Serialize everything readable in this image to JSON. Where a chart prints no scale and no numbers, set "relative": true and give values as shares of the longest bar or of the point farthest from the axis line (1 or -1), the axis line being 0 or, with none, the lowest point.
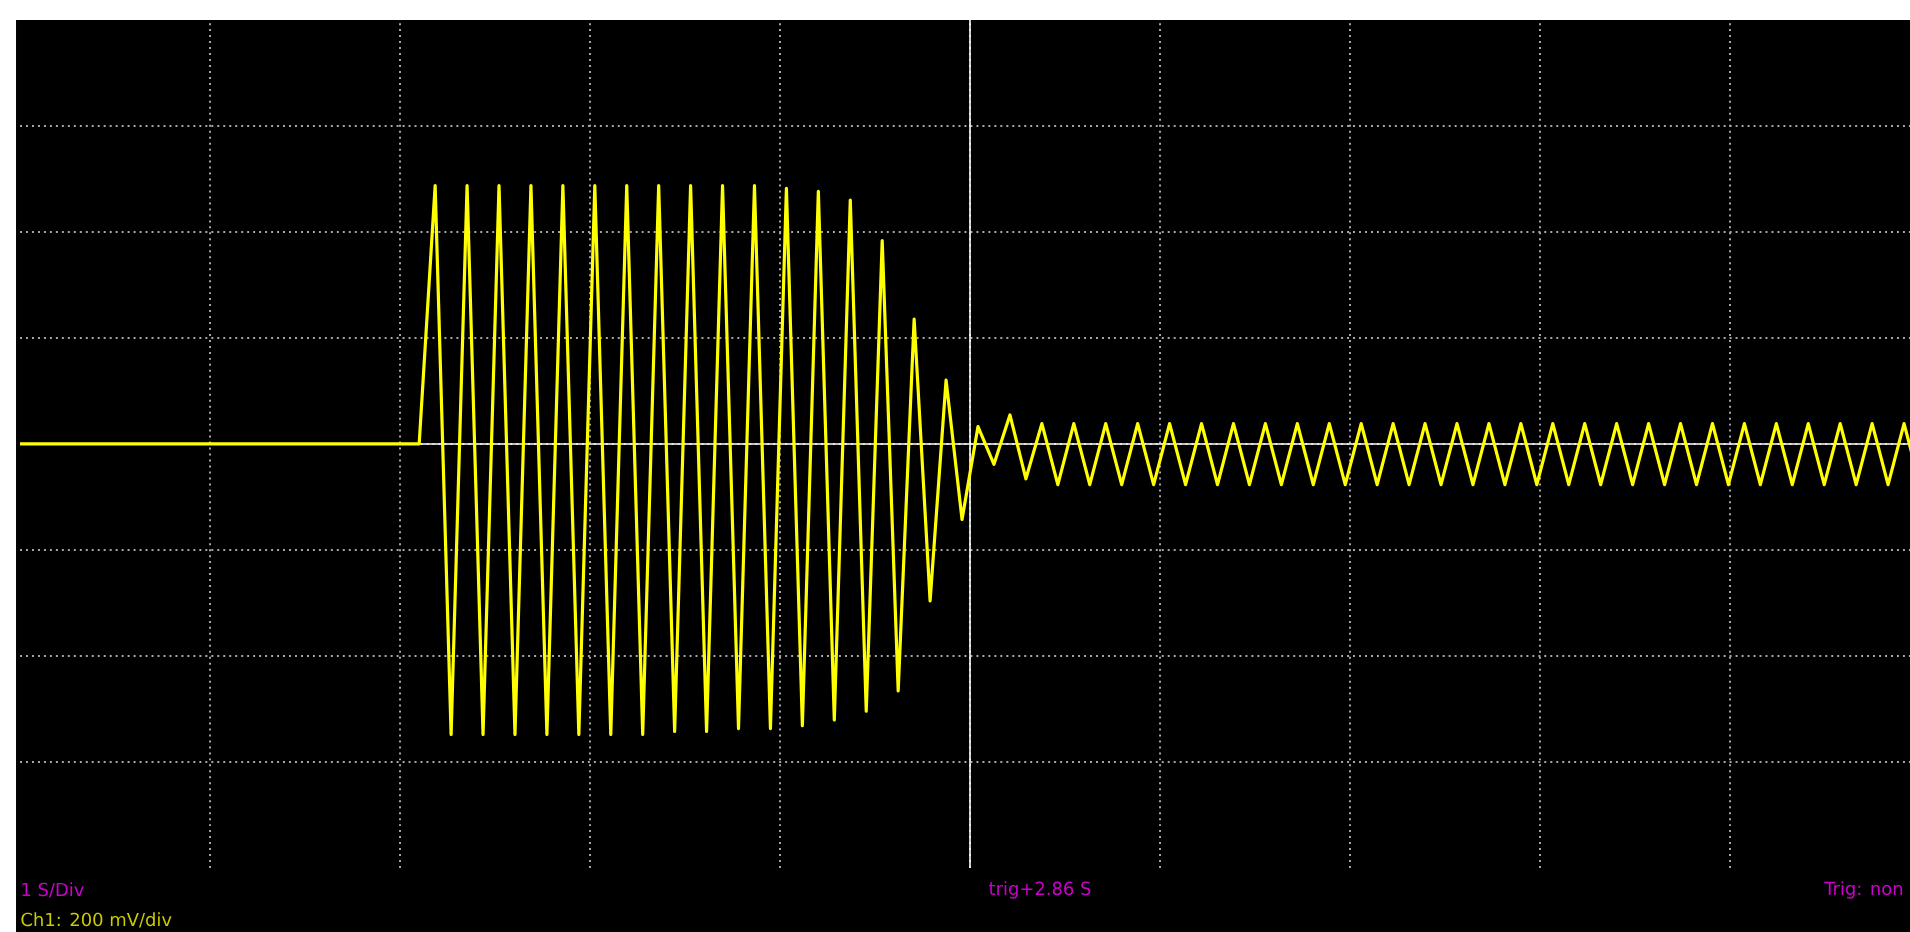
{
  "chart_data": {
    "type": "line",
    "relative": true,
    "grid": true,
    "categories": [
      null,
      null,
      null,
      null,
      null,
      null,
      null,
      null,
      null,
      null,
      null,
      null,
      null,
      null,
      null,
      null,
      null,
      null,
      null,
      null,
      null,
      null,
      null,
      null,
      null,
      null,
      null,
      null,
      null,
      null,
      null,
      null,
      null,
      null,
      null,
      null,
      null,
      null,
      null,
      null,
      null,
      null,
      null,
      null,
      null,
      null,
      null,
      null,
      null,
      null,
      null,
      null,
      null,
      null,
      null,
      null,
      null,
      null,
      null,
      null,
      null,
      null,
      null,
      null,
      null,
      null,
      null,
      null,
      null,
      null,
      null,
      null,
      null,
      null,
      null,
      null,
      null,
      null,
      null,
      null,
      null,
      null,
      null,
      null,
      null,
      null,
      null,
      null,
      null,
      null,
      null,
      null,
      null,
      null,
      null,
      null,
      null,
      null,
      null,
      null,
      null,
      null,
      null,
      null,
      null,
      null,
      null,
      null,
      null,
      null,
      null,
      null,
      null,
      null,
      null,
      null,
      null,
      null,
      null,
      null
    ],
    "series": [
      {
        "color": "#ffff00",
        "values": [
          0,
          0,
          0,
          0,
          0,
          0,
          0,
          0,
          0,
          0,
          0,
          0,
          0,
          0,
          0,
          0,
          0,
          0,
          0,
          0,
          0,
          0,
          0,
          0,
          0,
          0,
          0.89,
          -1,
          0.89,
          -1,
          0.89,
          -1,
          0.89,
          -1,
          0.89,
          -1,
          0.89,
          -1,
          0.89,
          -1,
          0.89,
          -0.99,
          0.89,
          -0.99,
          0.89,
          -0.98,
          0.89,
          -0.98,
          0.88,
          -0.97,
          0.87,
          -0.95,
          0.84,
          -0.92,
          0.7,
          -0.85,
          0.43,
          -0.54,
          0.22,
          -0.26,
          0.06,
          -0.07,
          0.1,
          -0.12,
          0.07,
          -0.14,
          0.07,
          -0.14,
          0.07,
          -0.14,
          0.07,
          -0.14,
          0.07,
          -0.14,
          0.07,
          -0.14,
          0.07,
          -0.14,
          0.07,
          -0.14,
          0.07,
          -0.14,
          0.07,
          -0.14,
          0.07,
          -0.14,
          0.07,
          -0.14,
          0.07,
          -0.14,
          0.07,
          -0.14,
          0.07,
          -0.14,
          0.07,
          -0.14,
          0.07,
          -0.14,
          0.07,
          -0.14,
          0.07,
          -0.14,
          0.07,
          -0.14,
          0.07,
          -0.14,
          0.07,
          -0.14,
          0.07,
          -0.14,
          0.07,
          -0.14,
          0.07,
          -0.14,
          0.07,
          -0.14,
          0.07,
          -0.14,
          0.07,
          -0.14
        ]
      }
    ],
    "annotations": [
      "1 S/Div",
      "trig+2.86 S",
      "Trig: non",
      "Ch1: 200 mV/div"
    ]
  }
}
